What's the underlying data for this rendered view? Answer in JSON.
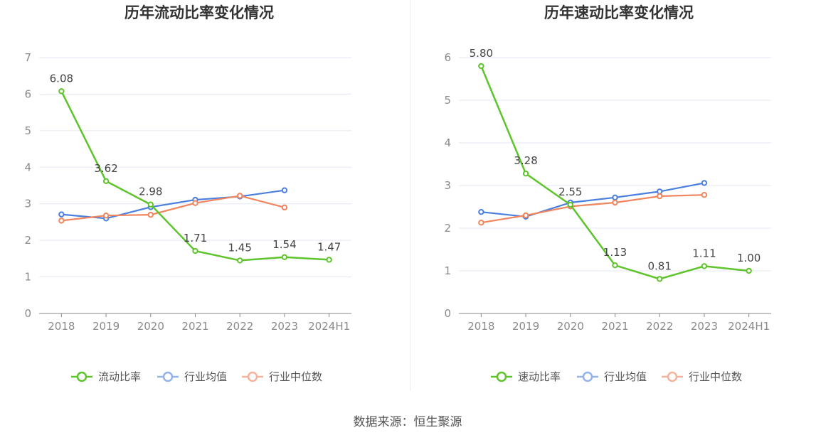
{
  "colors": {
    "series_primary": "#5dc42b",
    "industry_avg": "#4a7fe0",
    "industry_median": "#f0855e",
    "divider": "#eeeeee"
  },
  "source": "数据来源：恒生聚源",
  "chart_data": [
    {
      "type": "line",
      "title": "历年流动比率变化情况",
      "categories": [
        "2018",
        "2019",
        "2020",
        "2021",
        "2022",
        "2023",
        "2024H1"
      ],
      "ylim": [
        0,
        7
      ],
      "yticks": [
        0,
        1,
        2,
        3,
        4,
        5,
        6,
        7
      ],
      "grid": true,
      "legend_position": "bottom",
      "series": [
        {
          "name": "流动比率",
          "values": [
            6.08,
            3.62,
            2.98,
            1.71,
            1.45,
            1.54,
            1.47
          ],
          "labels": [
            "6.08",
            "3.62",
            "2.98",
            "1.71",
            "1.45",
            "1.54",
            "1.47"
          ]
        },
        {
          "name": "行业均值",
          "values": [
            2.71,
            2.6,
            2.91,
            3.11,
            3.2,
            3.37,
            null
          ]
        },
        {
          "name": "行业中位数",
          "values": [
            2.54,
            2.68,
            2.7,
            3.02,
            3.22,
            2.9,
            null
          ]
        }
      ]
    },
    {
      "type": "line",
      "title": "历年速动比率变化情况",
      "categories": [
        "2018",
        "2019",
        "2020",
        "2021",
        "2022",
        "2023",
        "2024H1"
      ],
      "ylim": [
        0,
        6
      ],
      "yticks": [
        0,
        1,
        2,
        3,
        4,
        5,
        6
      ],
      "grid": true,
      "legend_position": "bottom",
      "series": [
        {
          "name": "速动比率",
          "values": [
            5.8,
            3.28,
            2.55,
            1.13,
            0.81,
            1.11,
            1.0
          ],
          "labels": [
            "5.80",
            "3.28",
            "2.55",
            "1.13",
            "0.81",
            "1.11",
            "1.00"
          ]
        },
        {
          "name": "行业均值",
          "values": [
            2.38,
            2.27,
            2.6,
            2.72,
            2.86,
            3.06,
            null
          ]
        },
        {
          "name": "行业中位数",
          "values": [
            2.13,
            2.3,
            2.51,
            2.6,
            2.75,
            2.78,
            null
          ]
        }
      ]
    }
  ]
}
